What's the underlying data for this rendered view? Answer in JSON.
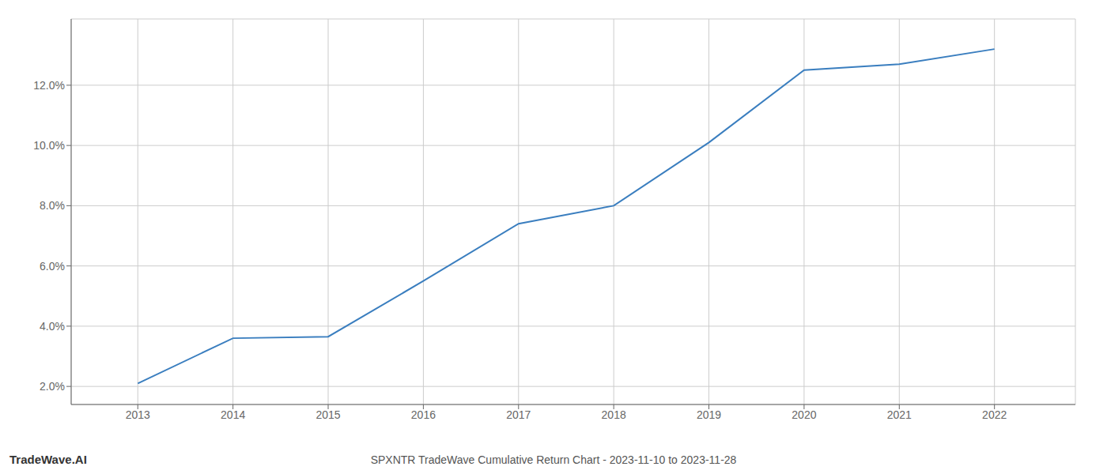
{
  "chart_data": {
    "type": "line",
    "title": "SPXNTR TradeWave Cumulative Return Chart - 2023-11-10 to 2023-11-28",
    "annotations": [
      "TradeWave.AI"
    ],
    "x": [
      2013,
      2014,
      2015,
      2016,
      2017,
      2018,
      2019,
      2020,
      2021,
      2022
    ],
    "values": [
      2.1,
      3.6,
      3.65,
      5.5,
      7.4,
      8.0,
      10.1,
      12.5,
      12.7,
      13.2
    ],
    "color": "#3a7ebf",
    "xlim": [
      2012.3,
      2022.85
    ],
    "xticks": [
      2013,
      2014,
      2015,
      2016,
      2017,
      2018,
      2019,
      2020,
      2021,
      2022
    ],
    "ylim": [
      1.4,
      14.2
    ],
    "yticks": [
      {
        "value": 2.0,
        "label": "2.0%"
      },
      {
        "value": 4.0,
        "label": "4.0%"
      },
      {
        "value": 6.0,
        "label": "6.0%"
      },
      {
        "value": 8.0,
        "label": "8.0%"
      },
      {
        "value": 10.0,
        "label": "10.0%"
      },
      {
        "value": 12.0,
        "label": "12.0%"
      }
    ],
    "grid": true
  }
}
